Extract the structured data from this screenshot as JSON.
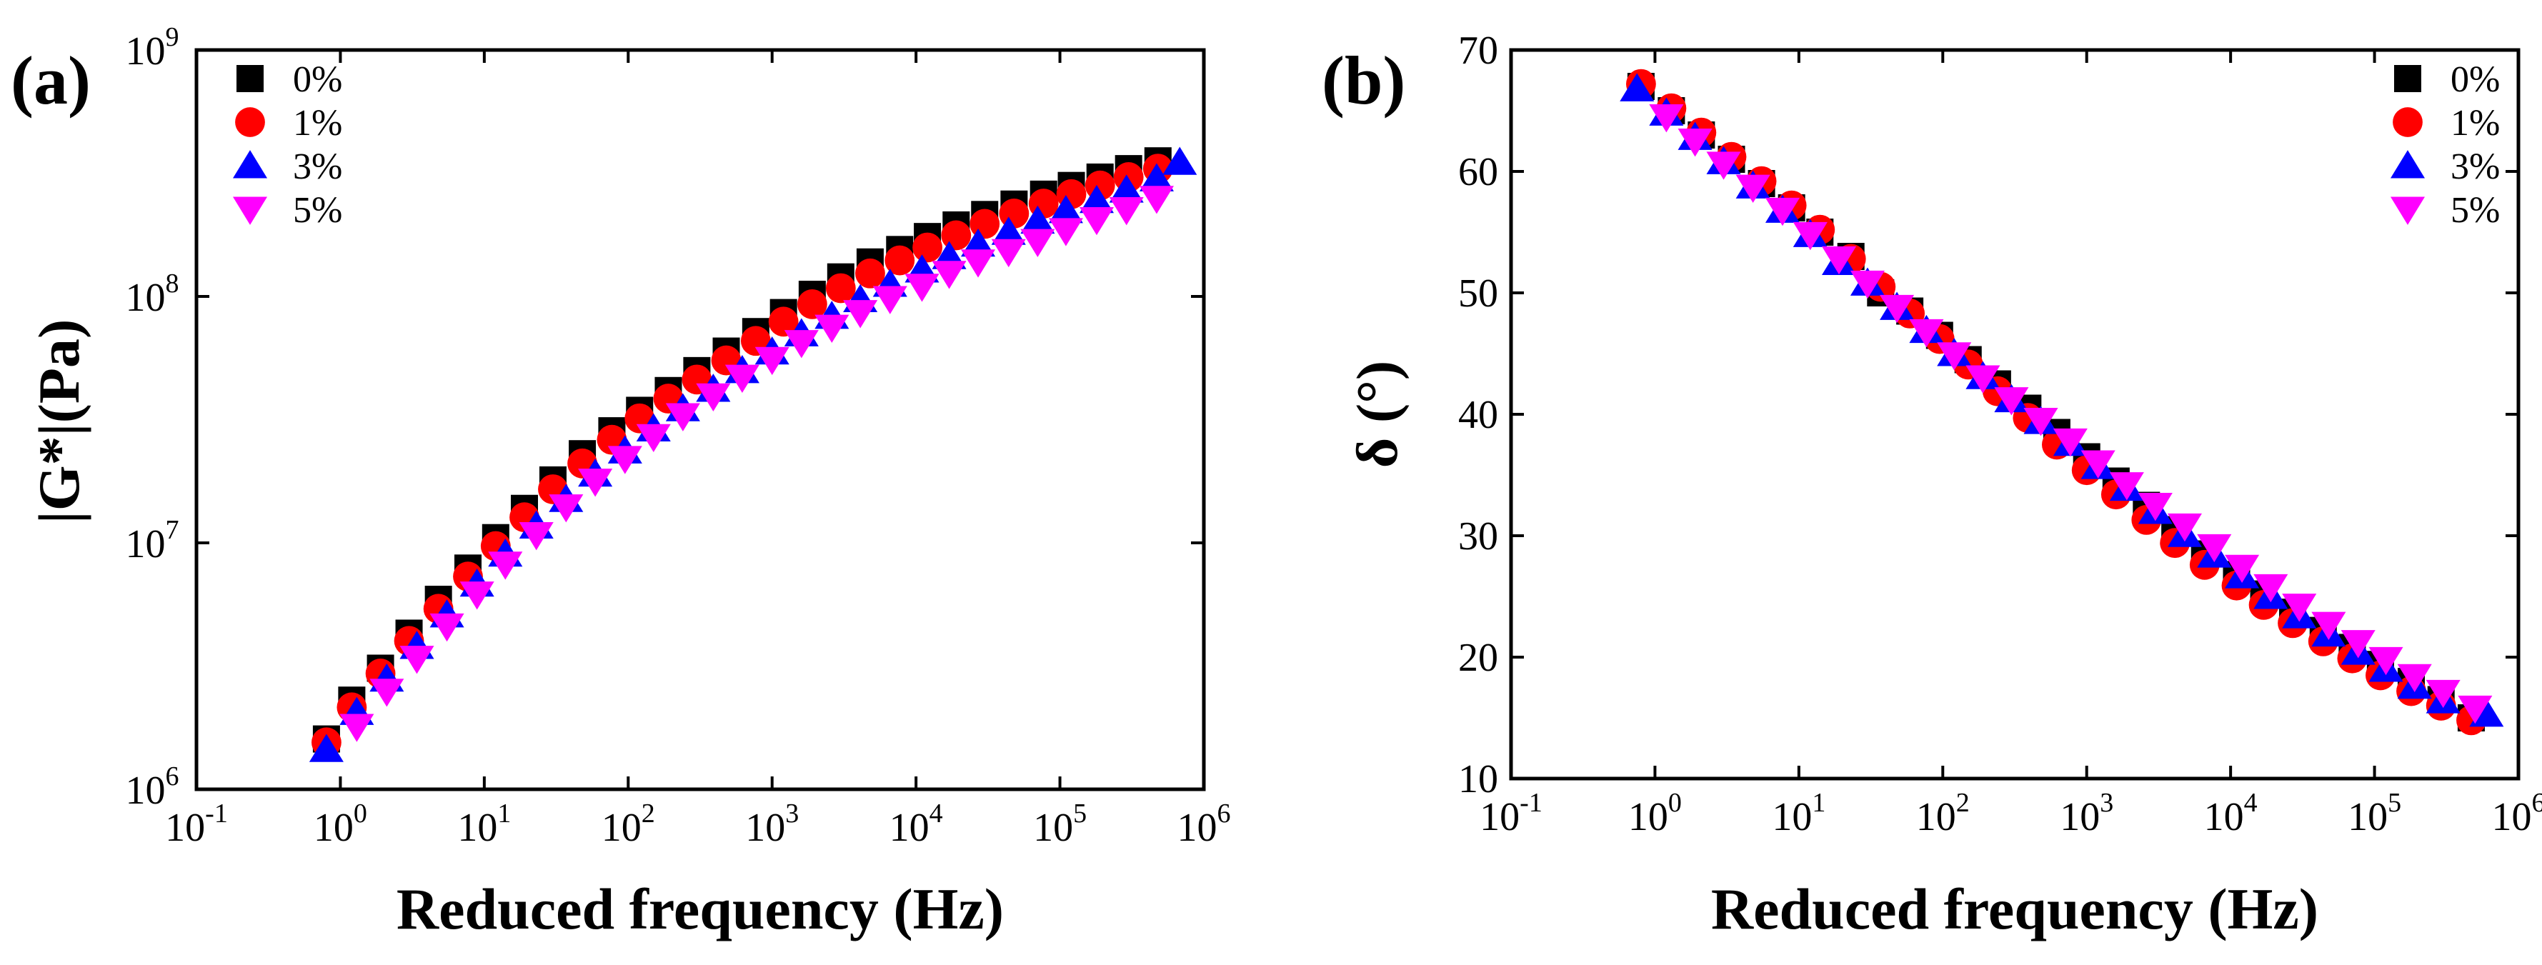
{
  "chart_data": [
    {
      "type": "scatter",
      "panel_label": "(a)",
      "xscale": "log",
      "yscale": "log",
      "xlabel": "Reduced frequency (Hz)",
      "ylabel": "|G*|(Pa)",
      "xlim": [
        0.1,
        1000000
      ],
      "ylim": [
        1000000,
        1000000000
      ],
      "xtick_labels": [
        {
          "base": "10",
          "exp": "-1"
        },
        {
          "base": "10",
          "exp": "0"
        },
        {
          "base": "10",
          "exp": "1"
        },
        {
          "base": "10",
          "exp": "2"
        },
        {
          "base": "10",
          "exp": "3"
        },
        {
          "base": "10",
          "exp": "4"
        },
        {
          "base": "10",
          "exp": "5"
        },
        {
          "base": "10",
          "exp": "6"
        }
      ],
      "ytick_labels": [
        {
          "base": "10",
          "exp": "6"
        },
        {
          "base": "10",
          "exp": "7"
        },
        {
          "base": "10",
          "exp": "8"
        },
        {
          "base": "10",
          "exp": "9"
        }
      ],
      "legend_position": "top-left",
      "series": [
        {
          "name": "0%",
          "marker": "square",
          "color": "#000000",
          "x": [
            0.8,
            1.2,
            1.9,
            3.0,
            4.8,
            7.7,
            12,
            19,
            30,
            48,
            77,
            120,
            190,
            300,
            480,
            770,
            1200,
            1900,
            3000,
            4800,
            7700,
            12000,
            19000,
            30000,
            48000,
            77000,
            120000,
            190000,
            300000,
            480000
          ],
          "y": [
            1600000.0,
            2300000.0,
            3100000.0,
            4300000.0,
            5900000.0,
            7900000.0,
            10500000.0,
            13800000.0,
            18000000.0,
            23000000.0,
            28500000.0,
            34500000.0,
            41500000.0,
            50000000.0,
            60000000.0,
            72000000.0,
            86000000.0,
            102000000.0,
            120000000.0,
            138000000.0,
            155000000.0,
            175000000.0,
            195000000.0,
            215000000.0,
            237000000.0,
            260000000.0,
            282000000.0,
            305000000.0,
            330000000.0,
            355000000.0
          ]
        },
        {
          "name": "1%",
          "marker": "circle",
          "color": "#ff0000",
          "x": [
            0.8,
            1.2,
            1.9,
            3.0,
            4.8,
            7.7,
            12,
            19,
            30,
            48,
            77,
            120,
            190,
            300,
            480,
            770,
            1200,
            1900,
            3000,
            4800,
            7700,
            12000,
            19000,
            30000,
            48000,
            77000,
            120000,
            190000,
            300000,
            480000
          ],
          "y": [
            1550000.0,
            2150000.0,
            2950000.0,
            4000000.0,
            5400000.0,
            7300000.0,
            9700000.0,
            12700000.0,
            16500000.0,
            21000000.0,
            26200000.0,
            32000000.0,
            38500000.0,
            46000000.0,
            55000000.0,
            66000000.0,
            79000000.0,
            93000000.0,
            108000000.0,
            124000000.0,
            140000000.0,
            158000000.0,
            177000000.0,
            197000000.0,
            217000000.0,
            238000000.0,
            260000000.0,
            282000000.0,
            305000000.0,
            330000000.0
          ]
        },
        {
          "name": "3%",
          "marker": "triangle-up",
          "color": "#0000ff",
          "x": [
            0.8,
            1.3,
            2.1,
            3.4,
            5.5,
            8.9,
            14,
            23,
            37,
            59,
            95,
            150,
            240,
            390,
            620,
            1000,
            1600,
            2600,
            4100,
            6600,
            11000,
            17000,
            27000,
            44000,
            70000,
            110000,
            180000,
            290000,
            470000,
            680000
          ],
          "y": [
            1450000.0,
            2050000.0,
            2800000.0,
            3800000.0,
            5100000.0,
            6800000.0,
            9000000.0,
            11700000.0,
            15000000.0,
            19000000.0,
            23600000.0,
            29000000.0,
            35000000.0,
            42000000.0,
            50000000.0,
            59500000.0,
            70500000.0,
            83000000.0,
            97000000.0,
            112000000.0,
            128000000.0,
            145000000.0,
            163000000.0,
            182000000.0,
            202000000.0,
            223000000.0,
            245000000.0,
            270000000.0,
            300000000.0,
            350000000.0
          ]
        },
        {
          "name": "5%",
          "marker": "triangle-down",
          "color": "#ff00ff",
          "x": [
            1.3,
            2.1,
            3.4,
            5.5,
            8.9,
            14,
            23,
            37,
            59,
            95,
            150,
            240,
            390,
            620,
            1000,
            1600,
            2600,
            4100,
            6600,
            11000,
            17000,
            27000,
            44000,
            70000,
            110000,
            180000,
            290000,
            470000
          ],
          "y": [
            1800000.0,
            2500000.0,
            3400000.0,
            4600000.0,
            6200000.0,
            8200000.0,
            10800000.0,
            14000000.0,
            17800000.0,
            22000000.0,
            27000000.0,
            32800000.0,
            39500000.0,
            47000000.0,
            55500000.0,
            65000000.0,
            75000000.0,
            86000000.0,
            98000000.0,
            110000000.0,
            124000000.0,
            138000000.0,
            152000000.0,
            167000000.0,
            185000000.0,
            205000000.0,
            225000000.0,
            250000000.0
          ]
        }
      ]
    },
    {
      "type": "scatter",
      "panel_label": "(b)",
      "xscale": "log",
      "yscale": "linear",
      "xlabel": "Reduced frequency (Hz)",
      "ylabel": "δ (°)",
      "xlim": [
        0.1,
        1000000
      ],
      "ylim": [
        10,
        70
      ],
      "xtick_labels": [
        {
          "base": "10",
          "exp": "-1"
        },
        {
          "base": "10",
          "exp": "0"
        },
        {
          "base": "10",
          "exp": "1"
        },
        {
          "base": "10",
          "exp": "2"
        },
        {
          "base": "10",
          "exp": "3"
        },
        {
          "base": "10",
          "exp": "4"
        },
        {
          "base": "10",
          "exp": "5"
        },
        {
          "base": "10",
          "exp": "6"
        }
      ],
      "yticks": [
        10,
        20,
        30,
        40,
        50,
        60,
        70
      ],
      "legend_position": "top-right",
      "series": [
        {
          "name": "0%",
          "marker": "square",
          "color": "#000000",
          "x": [
            0.8,
            1.3,
            2.1,
            3.4,
            5.5,
            8.9,
            14,
            23,
            37,
            59,
            95,
            150,
            240,
            390,
            620,
            1000,
            1600,
            2600,
            4100,
            6600,
            11000,
            17000,
            27000,
            44000,
            70000,
            110000,
            180000,
            290000,
            470000
          ],
          "y": [
            67,
            65,
            63,
            61,
            59,
            57,
            55,
            53,
            50,
            48.5,
            46.5,
            44.5,
            42.5,
            40.5,
            38.5,
            36.5,
            34.5,
            32.5,
            30.5,
            28.5,
            26.8,
            25.2,
            23.7,
            22.2,
            20.8,
            19.4,
            18,
            16.5,
            15
          ]
        },
        {
          "name": "1%",
          "marker": "circle",
          "color": "#ff0000",
          "x": [
            0.8,
            1.3,
            2.1,
            3.4,
            5.5,
            8.9,
            14,
            23,
            37,
            59,
            95,
            150,
            240,
            390,
            620,
            1000,
            1600,
            2600,
            4100,
            6600,
            11000,
            17000,
            27000,
            44000,
            70000,
            110000,
            180000,
            290000,
            470000
          ],
          "y": [
            67.2,
            65.2,
            63.2,
            61.2,
            59.2,
            57.2,
            55.2,
            52.8,
            50.5,
            48.3,
            46.2,
            44.1,
            41.9,
            39.7,
            37.5,
            35.4,
            33.4,
            31.3,
            29.4,
            27.6,
            25.9,
            24.3,
            22.8,
            21.3,
            19.9,
            18.5,
            17.2,
            16,
            14.8
          ]
        },
        {
          "name": "3%",
          "marker": "triangle-up",
          "color": "#0000ff",
          "x": [
            0.75,
            1.2,
            1.9,
            3.0,
            4.8,
            7.7,
            12,
            19,
            30,
            48,
            77,
            120,
            190,
            300,
            480,
            770,
            1200,
            1900,
            3000,
            4800,
            7700,
            12000,
            19000,
            30000,
            48000,
            77000,
            120000,
            190000,
            300000,
            600000
          ],
          "y": [
            66.8,
            64.8,
            62.8,
            60.8,
            58.8,
            56.8,
            54.8,
            52.5,
            50.8,
            48.8,
            46.9,
            45,
            43.1,
            41.2,
            39.4,
            37.6,
            35.7,
            33.9,
            32,
            30.1,
            28.4,
            26.7,
            25,
            23.4,
            21.9,
            20.4,
            19,
            17.6,
            16.4,
            15.3
          ]
        },
        {
          "name": "5%",
          "marker": "triangle-down",
          "color": "#ff00ff",
          "x": [
            1.2,
            1.9,
            3.0,
            4.8,
            7.7,
            12,
            19,
            30,
            48,
            77,
            120,
            190,
            300,
            480,
            770,
            1200,
            1900,
            3000,
            4800,
            7700,
            12000,
            19000,
            30000,
            48000,
            77000,
            120000,
            190000,
            300000,
            500000
          ],
          "y": [
            64.5,
            62.5,
            60.6,
            58.7,
            56.8,
            54.8,
            52.8,
            50.8,
            48.8,
            46.8,
            44.9,
            43,
            41.2,
            39.5,
            37.8,
            36,
            34.2,
            32.5,
            30.8,
            29.1,
            27.4,
            25.8,
            24.2,
            22.7,
            21.2,
            19.8,
            18.4,
            17.1,
            15.8
          ]
        }
      ]
    }
  ]
}
